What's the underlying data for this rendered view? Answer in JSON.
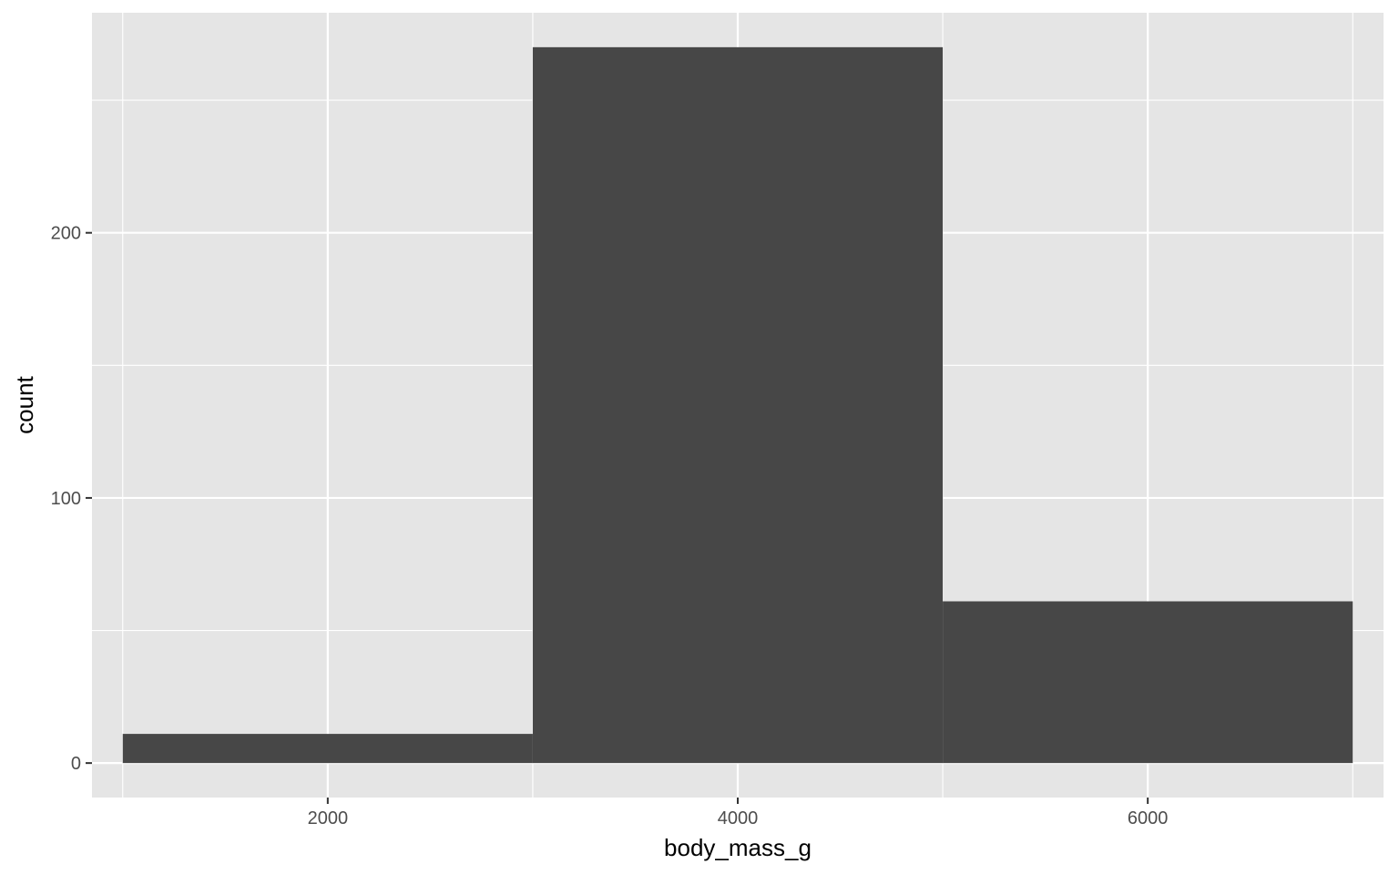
{
  "chart_data": {
    "type": "bar",
    "xlabel": "body_mass_g",
    "ylabel": "count",
    "xlim": [
      850,
      7150
    ],
    "ylim": [
      -13,
      283
    ],
    "x_ticks": [
      2000,
      4000,
      6000
    ],
    "x_tick_labels": [
      "2000",
      "4000",
      "6000"
    ],
    "y_ticks": [
      0,
      100,
      200
    ],
    "y_tick_labels": [
      "0",
      "100",
      "200"
    ],
    "bins": [
      {
        "x_start": 1000,
        "x_end": 3000,
        "count": 11
      },
      {
        "x_start": 3000,
        "x_end": 5000,
        "count": 270
      },
      {
        "x_start": 5000,
        "x_end": 7000,
        "count": 61
      }
    ],
    "grid": true,
    "colors": {
      "panel_background": "#e5e5e5",
      "grid_major": "#ffffff",
      "bar_fill": "#474747",
      "tick_text": "#4d4d4d",
      "axis_title_text": "#000000"
    }
  }
}
